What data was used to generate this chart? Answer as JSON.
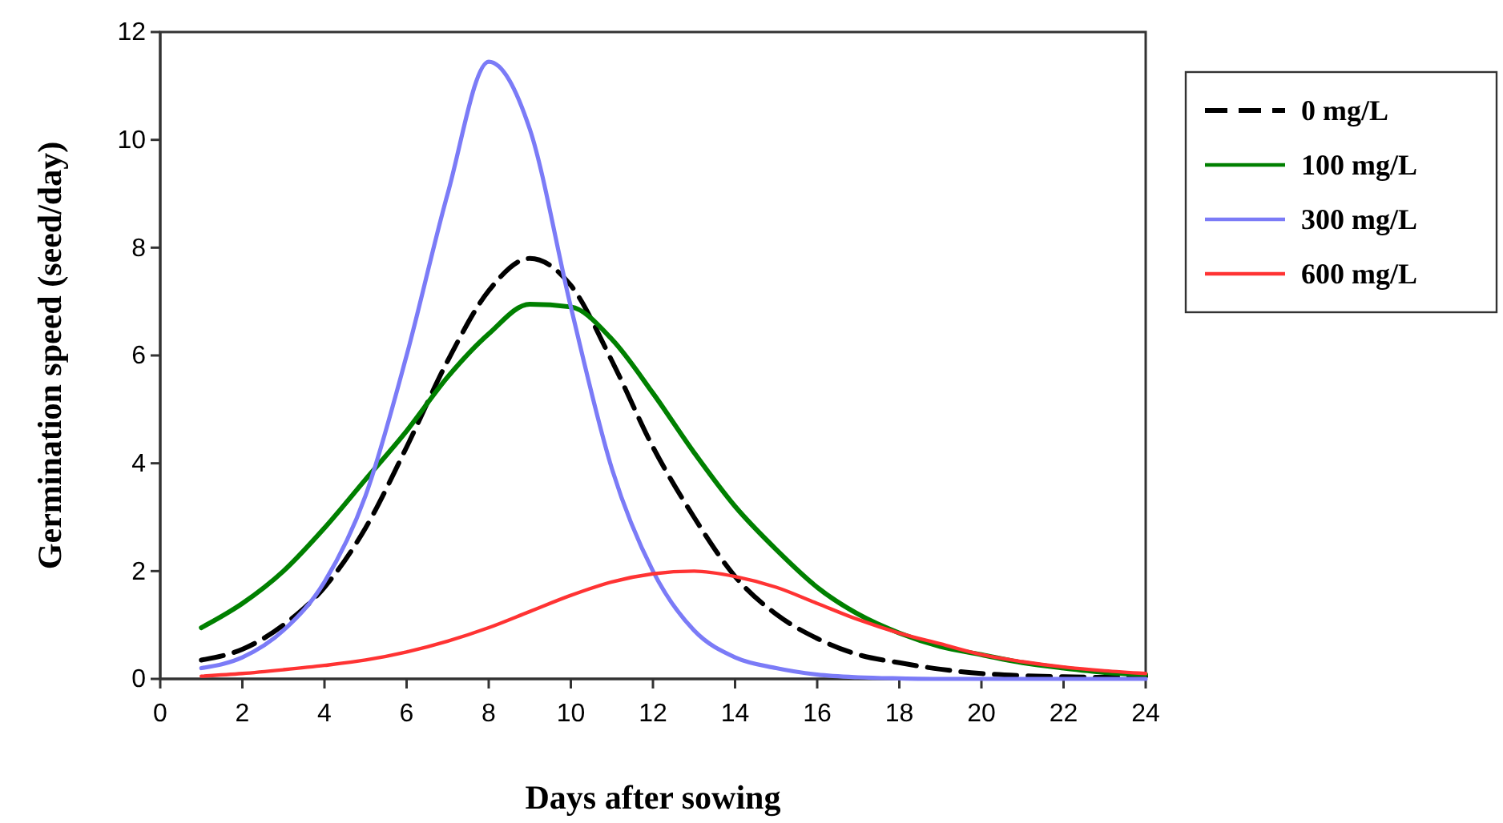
{
  "chart_data": {
    "type": "line",
    "xlabel": "Days after sowing",
    "ylabel": "Germination speed (seed/day)",
    "x": [
      1,
      2,
      3,
      4,
      5,
      6,
      7,
      8,
      9,
      10,
      11,
      12,
      13,
      14,
      15,
      16,
      17,
      18,
      19,
      20,
      21,
      22,
      23,
      24
    ],
    "xlim": [
      0,
      24
    ],
    "xticks": [
      0,
      2,
      4,
      6,
      8,
      10,
      12,
      14,
      16,
      18,
      20,
      22,
      24
    ],
    "ylim": [
      0,
      12
    ],
    "yticks": [
      0,
      2,
      4,
      6,
      8,
      10,
      12
    ],
    "grid": false,
    "legend": "right",
    "marker": "none",
    "series": [
      {
        "name": "0 mg/L",
        "color": "#000000",
        "line_style": "dashed",
        "values": [
          0.35,
          0.55,
          1.0,
          1.7,
          2.8,
          4.3,
          5.9,
          7.2,
          7.8,
          7.3,
          5.9,
          4.3,
          3.0,
          1.9,
          1.2,
          0.75,
          0.45,
          0.3,
          0.18,
          0.1,
          0.06,
          0.04,
          0.03,
          0.05
        ]
      },
      {
        "name": "100 mg/L",
        "color": "#008000",
        "line_style": "solid",
        "values": [
          0.95,
          1.4,
          2.0,
          2.8,
          3.7,
          4.6,
          5.6,
          6.4,
          6.95,
          6.9,
          6.3,
          5.3,
          4.2,
          3.2,
          2.4,
          1.7,
          1.2,
          0.85,
          0.6,
          0.45,
          0.3,
          0.2,
          0.12,
          0.08
        ]
      },
      {
        "name": "300 mg/L",
        "color": "#7b7bf7",
        "line_style": "solid",
        "values": [
          0.2,
          0.4,
          0.9,
          1.8,
          3.4,
          6.0,
          9.0,
          11.45,
          10.2,
          6.9,
          3.9,
          2.0,
          0.9,
          0.4,
          0.2,
          0.08,
          0.03,
          0.01,
          0,
          0,
          0,
          0,
          0,
          0
        ]
      },
      {
        "name": "600 mg/L",
        "color": "#ff3333",
        "line_style": "solid",
        "values": [
          0.05,
          0.1,
          0.17,
          0.25,
          0.35,
          0.5,
          0.7,
          0.95,
          1.25,
          1.55,
          1.8,
          1.95,
          2.0,
          1.9,
          1.7,
          1.4,
          1.1,
          0.85,
          0.65,
          0.45,
          0.32,
          0.22,
          0.15,
          0.1
        ]
      }
    ]
  }
}
